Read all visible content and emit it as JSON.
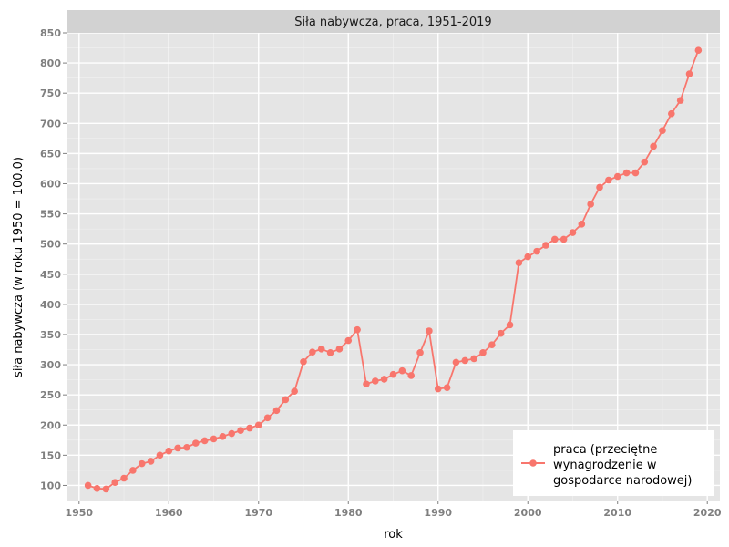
{
  "chart_data": {
    "type": "line",
    "title": "Siła nabywcza, praca, 1951-2019",
    "xlabel": "rok",
    "ylabel": "siła nabywcza (w roku 1950 = 100.0)",
    "xlim": [
      1948.6,
      2021.4
    ],
    "ylim": [
      75,
      850
    ],
    "x_ticks": [
      "1950",
      "1960",
      "1970",
      "1980",
      "1990",
      "2000",
      "2010",
      "2020"
    ],
    "y_ticks": [
      "100",
      "150",
      "200",
      "250",
      "300",
      "350",
      "400",
      "450",
      "500",
      "550",
      "600",
      "650",
      "700",
      "750",
      "800",
      "850"
    ],
    "grid": true,
    "legend_position": "bottom-right",
    "series": [
      {
        "name": "praca (przeciętne wynagrodzenie w gospodarce narodowej)",
        "legend_lines": [
          "praca (przeciętne",
          "wynagrodzenie w",
          "gospodarce narodowej)"
        ],
        "color": "#f8766d",
        "x": [
          1951,
          1952,
          1953,
          1954,
          1955,
          1956,
          1957,
          1958,
          1959,
          1960,
          1961,
          1962,
          1963,
          1964,
          1965,
          1966,
          1967,
          1968,
          1969,
          1970,
          1971,
          1972,
          1973,
          1974,
          1975,
          1976,
          1977,
          1978,
          1979,
          1980,
          1981,
          1982,
          1983,
          1984,
          1985,
          1986,
          1987,
          1988,
          1989,
          1990,
          1991,
          1992,
          1993,
          1994,
          1995,
          1996,
          1997,
          1998,
          1999,
          2000,
          2001,
          2002,
          2003,
          2004,
          2005,
          2006,
          2007,
          2008,
          2009,
          2010,
          2011,
          2012,
          2013,
          2014,
          2015,
          2016,
          2017,
          2018,
          2019
        ],
        "values": [
          100,
          95,
          94,
          105,
          112,
          125,
          136,
          140,
          150,
          157,
          162,
          163,
          170,
          174,
          177,
          181,
          186,
          191,
          195,
          200,
          212,
          224,
          242,
          256,
          305,
          321,
          326,
          320,
          326,
          340,
          358,
          268,
          273,
          276,
          284,
          290,
          282,
          320,
          356,
          260,
          262,
          304,
          307,
          310,
          320,
          333,
          352,
          366,
          469,
          479,
          488,
          498,
          508,
          508,
          519,
          533,
          566,
          594,
          606,
          612,
          618,
          618,
          636,
          662,
          688,
          716,
          738,
          782,
          821
        ]
      }
    ]
  }
}
